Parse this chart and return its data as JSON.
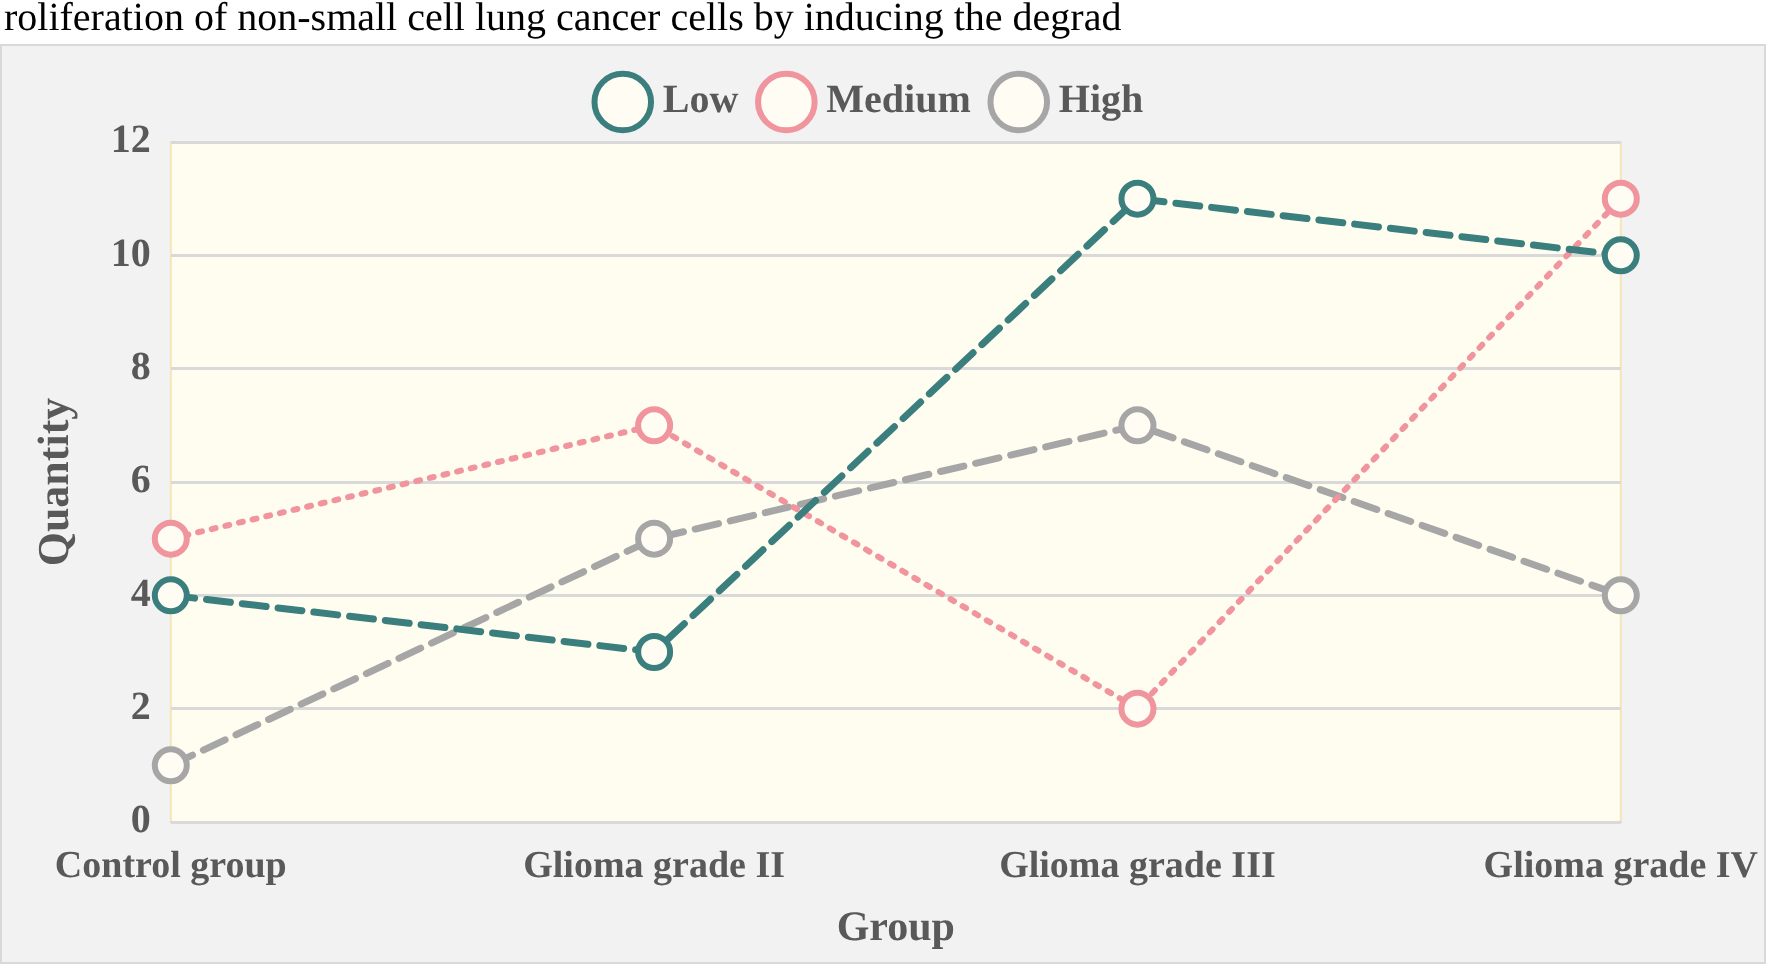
{
  "chart_data": {
    "type": "line",
    "xlabel": "Group",
    "ylabel": "Quantity",
    "annotations": [
      "roliferation of non-small cell lung cancer cells by inducing the degrad"
    ],
    "categories": [
      "Control group",
      "Glioma grade II",
      "Glioma grade III",
      "Glioma grade IV"
    ],
    "series": [
      {
        "name": "Low",
        "color": "#3a7f7e",
        "values": [
          4,
          3,
          11,
          10
        ],
        "line_style": "dashed"
      },
      {
        "name": "Medium",
        "color": "#f0949e",
        "values": [
          5,
          7,
          2,
          11
        ],
        "line_style": "dotted"
      },
      {
        "name": "High",
        "color": "#a6a6a6",
        "values": [
          1,
          5,
          7,
          4
        ],
        "line_style": "dashed"
      }
    ],
    "ylim": [
      0,
      12
    ],
    "yticks": [
      0,
      2,
      4,
      6,
      8,
      10,
      12
    ],
    "grid": "y",
    "legend": "top",
    "marker": "circle"
  }
}
